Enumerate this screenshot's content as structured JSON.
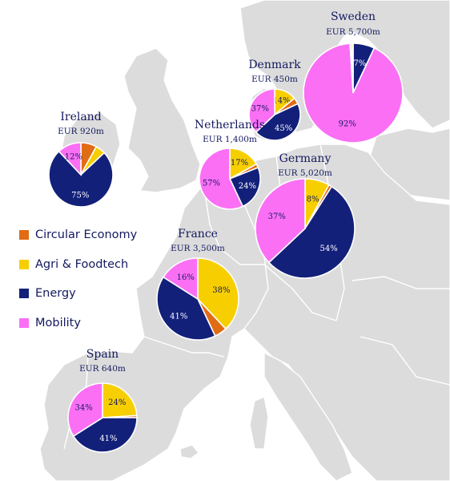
{
  "colors": {
    "circular": "#e06c14",
    "agri": "#f7cf00",
    "energy": "#13207a",
    "mobility": "#fb6ff5"
  },
  "legend": [
    {
      "key": "circular",
      "label": "Circular Economy"
    },
    {
      "key": "agri",
      "label": "Agri & Foodtech"
    },
    {
      "key": "energy",
      "label": "Energy"
    },
    {
      "key": "mobility",
      "label": "Mobility"
    }
  ],
  "chart_data": {
    "type": "pie",
    "series": [
      {
        "country": "Sweden",
        "amount": "EUR 5,700m",
        "slices": [
          {
            "key": "energy",
            "value": 7,
            "label": "7%"
          },
          {
            "key": "mobility",
            "value": 92,
            "label": "92%"
          },
          {
            "key": "circular",
            "value": 0.5,
            "label": ""
          },
          {
            "key": "agri",
            "value": 0.5,
            "label": ""
          }
        ]
      },
      {
        "country": "Denmark",
        "amount": "EUR 450m",
        "slices": [
          {
            "key": "agri",
            "value": 14,
            "label": "14%"
          },
          {
            "key": "circular",
            "value": 4,
            "label": ""
          },
          {
            "key": "energy",
            "value": 45,
            "label": "45%"
          },
          {
            "key": "mobility",
            "value": 37,
            "label": "37%"
          }
        ]
      },
      {
        "country": "Ireland",
        "amount": "EUR 920m",
        "slices": [
          {
            "key": "circular",
            "value": 8,
            "label": ""
          },
          {
            "key": "agri",
            "value": 5,
            "label": ""
          },
          {
            "key": "energy",
            "value": 75,
            "label": "75%"
          },
          {
            "key": "mobility",
            "value": 12,
            "label": "12%"
          }
        ]
      },
      {
        "country": "Netherlands",
        "amount": "EUR 1,400m",
        "slices": [
          {
            "key": "agri",
            "value": 17,
            "label": "17%"
          },
          {
            "key": "circular",
            "value": 2,
            "label": ""
          },
          {
            "key": "energy",
            "value": 24,
            "label": "24%"
          },
          {
            "key": "mobility",
            "value": 57,
            "label": "57%"
          }
        ]
      },
      {
        "country": "Germany",
        "amount": "EUR 5,020m",
        "slices": [
          {
            "key": "agri",
            "value": 8,
            "label": "8%"
          },
          {
            "key": "circular",
            "value": 1,
            "label": ""
          },
          {
            "key": "energy",
            "value": 54,
            "label": "54%"
          },
          {
            "key": "mobility",
            "value": 37,
            "label": "37%"
          }
        ]
      },
      {
        "country": "France",
        "amount": "EUR 3,500m",
        "slices": [
          {
            "key": "agri",
            "value": 38,
            "label": "38%"
          },
          {
            "key": "circular",
            "value": 5,
            "label": ""
          },
          {
            "key": "energy",
            "value": 41,
            "label": "41%"
          },
          {
            "key": "mobility",
            "value": 16,
            "label": "16%"
          }
        ]
      },
      {
        "country": "Spain",
        "amount": "EUR 640m",
        "slices": [
          {
            "key": "agri",
            "value": 24,
            "label": "24%"
          },
          {
            "key": "circular",
            "value": 1,
            "label": ""
          },
          {
            "key": "energy",
            "value": 41,
            "label": "41%"
          },
          {
            "key": "mobility",
            "value": 34,
            "label": "34%"
          }
        ]
      }
    ]
  }
}
